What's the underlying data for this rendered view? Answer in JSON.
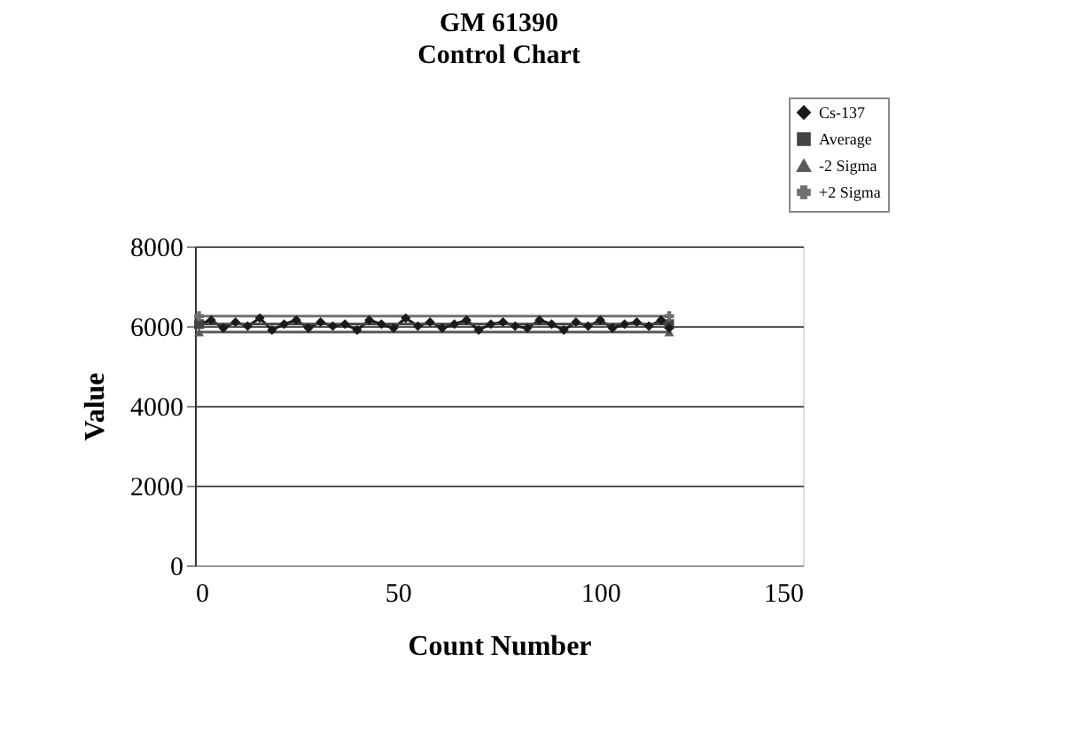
{
  "chart_data": {
    "type": "line",
    "title": "GM 61390",
    "subtitle": "Control Chart",
    "xlabel": "Count Number",
    "ylabel": "Value",
    "xlim": [
      0,
      150
    ],
    "xticks": [
      0,
      50,
      100,
      150
    ],
    "ylim": [
      0,
      8000
    ],
    "yticks": [
      0,
      2000,
      4000,
      6000,
      8000
    ],
    "grid": "y",
    "legend": "top right",
    "series": [
      {
        "name": "Cs-137",
        "color": "#1a1a1a",
        "marker": "diamond",
        "x": [
          1,
          4,
          7,
          10,
          13,
          16,
          19,
          22,
          25,
          28,
          31,
          34,
          37,
          40,
          43,
          46,
          49,
          52,
          55,
          58,
          61,
          64,
          67,
          70,
          73,
          76,
          79,
          82,
          85,
          88,
          91,
          94,
          97,
          100,
          103,
          106,
          109,
          112,
          115,
          117
        ],
        "values": [
          6050,
          6150,
          5950,
          6100,
          6000,
          6200,
          5900,
          6050,
          6150,
          5950,
          6100,
          6000,
          6050,
          5900,
          6150,
          6050,
          5950,
          6200,
          6000,
          6100,
          5950,
          6050,
          6150,
          5900,
          6050,
          6100,
          6000,
          5950,
          6150,
          6050,
          5900,
          6100,
          6000,
          6150,
          5950,
          6050,
          6100,
          6000,
          6150,
          5950
        ]
      },
      {
        "name": "Average",
        "color": "#444444",
        "marker": "square",
        "x": [
          1,
          117
        ],
        "values": [
          6050,
          6050
        ]
      },
      {
        "name": "-2 Sigma",
        "color": "#5a5a5a",
        "marker": "triangle",
        "x": [
          1,
          117
        ],
        "values": [
          5850,
          5850
        ]
      },
      {
        "name": "+2 Sigma",
        "color": "#707070",
        "marker": "cross",
        "x": [
          1,
          117
        ],
        "values": [
          6250,
          6250
        ]
      }
    ]
  }
}
